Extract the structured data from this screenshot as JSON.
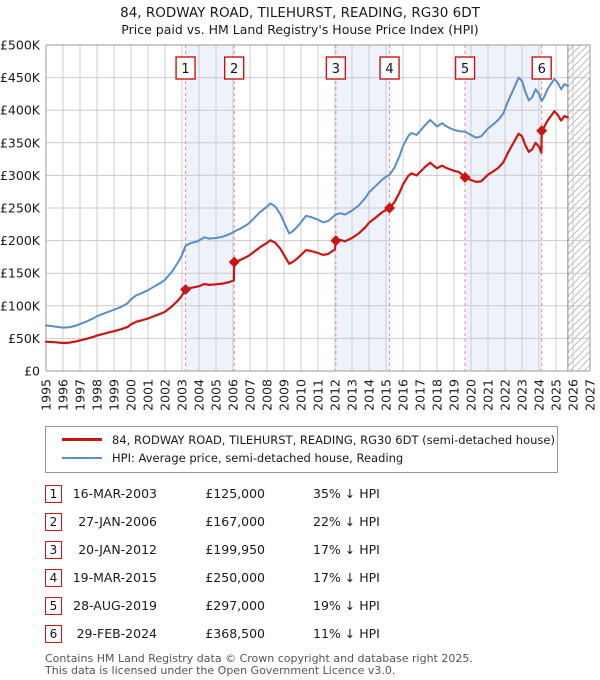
{
  "header": {
    "title": "84, RODWAY ROAD, TILEHURST, READING, RG30 6DT",
    "subtitle": "Price paid vs. HM Land Registry's House Price Index (HPI)"
  },
  "legend": {
    "items": [
      {
        "series": "property",
        "label": "84, RODWAY ROAD, TILEHURST, READING, RG30 6DT (semi-detached house)"
      },
      {
        "series": "hpi",
        "label": "HPI: Average price, semi-detached house, Reading"
      }
    ]
  },
  "table": {
    "rows": [
      {
        "n": "1",
        "date": "16-MAR-2003",
        "price": "£125,000",
        "pct": "35% ↓ HPI"
      },
      {
        "n": "2",
        "date": "27-JAN-2006",
        "price": "£167,000",
        "pct": "22% ↓ HPI"
      },
      {
        "n": "3",
        "date": "20-JAN-2012",
        "price": "£199,950",
        "pct": "17% ↓ HPI"
      },
      {
        "n": "4",
        "date": "19-MAR-2015",
        "price": "£250,000",
        "pct": "17% ↓ HPI"
      },
      {
        "n": "5",
        "date": "28-AUG-2019",
        "price": "£297,000",
        "pct": "19% ↓ HPI"
      },
      {
        "n": "6",
        "date": "29-FEB-2024",
        "price": "£368,500",
        "pct": "11% ↓ HPI"
      }
    ]
  },
  "footer": {
    "line1": "Contains HM Land Registry data © Crown copyright and database right 2025.",
    "line2": "This data is licensed under the Open Government Licence v3.0."
  },
  "chart_data": {
    "type": "line",
    "units": "GBP_thousands",
    "x_range": [
      1995,
      2027
    ],
    "y_range_thousands": [
      0,
      500
    ],
    "y_tick_step_thousands": 50,
    "y_tick_labels": [
      "£0",
      "£50K",
      "£100K",
      "£150K",
      "£200K",
      "£250K",
      "£300K",
      "£350K",
      "£400K",
      "£450K",
      "£500K"
    ],
    "x_tick_labels": [
      "1995",
      "1996",
      "1997",
      "1998",
      "1999",
      "2000",
      "2001",
      "2002",
      "2003",
      "2004",
      "2005",
      "2006",
      "2007",
      "2008",
      "2009",
      "2010",
      "2011",
      "2012",
      "2013",
      "2014",
      "2015",
      "2016",
      "2017",
      "2018",
      "2019",
      "2020",
      "2021",
      "2022",
      "2023",
      "2024",
      "2025",
      "2026",
      "2027"
    ],
    "grid": true,
    "legend_position": "below",
    "future_hatch_from": 2025.7,
    "shaded_bands": [
      [
        2003.21,
        2006.07
      ],
      [
        2012.05,
        2015.21
      ],
      [
        2019.65,
        2024.16
      ]
    ],
    "colors": {
      "property": "#cc1414",
      "hpi": "#5b8cc8",
      "sale_dash": "#ee8888",
      "band": "#eef2fb",
      "grid": "#cccccc",
      "plot_border": "#999999",
      "hatch": "#bbbbbb",
      "axis_text": "#1a1a1a"
    },
    "sales": [
      {
        "n": "1",
        "year": 2003.21,
        "price_k": 125.0,
        "date": "16-MAR-2003",
        "price": "£125,000",
        "pct": "35% ↓ HPI"
      },
      {
        "n": "2",
        "year": 2006.07,
        "price_k": 167.0,
        "date": "27-JAN-2006",
        "price": "£167,000",
        "pct": "22% ↓ HPI"
      },
      {
        "n": "3",
        "year": 2012.05,
        "price_k": 199.95,
        "date": "20-JAN-2012",
        "price": "£199,950",
        "pct": "17% ↓ HPI"
      },
      {
        "n": "4",
        "year": 2015.21,
        "price_k": 250.0,
        "date": "19-MAR-2015",
        "price": "£250,000",
        "pct": "17% ↓ HPI"
      },
      {
        "n": "5",
        "year": 2019.65,
        "price_k": 297.0,
        "date": "28-AUG-2019",
        "price": "£297,000",
        "pct": "19% ↓ HPI"
      },
      {
        "n": "6",
        "year": 2024.16,
        "price_k": 368.5,
        "date": "29-FEB-2024",
        "price": "£368,500",
        "pct": "11% ↓ HPI"
      }
    ],
    "series": [
      {
        "name": "hpi",
        "points": [
          [
            1995.0,
            70
          ],
          [
            1995.3,
            69
          ],
          [
            1995.6,
            68
          ],
          [
            1996.0,
            66.5
          ],
          [
            1996.4,
            67
          ],
          [
            1996.8,
            70
          ],
          [
            1997.0,
            72
          ],
          [
            1997.4,
            76
          ],
          [
            1997.8,
            81
          ],
          [
            1998.0,
            84
          ],
          [
            1998.4,
            88
          ],
          [
            1998.8,
            92
          ],
          [
            1999.0,
            94
          ],
          [
            1999.4,
            98
          ],
          [
            1999.8,
            104
          ],
          [
            2000.0,
            110
          ],
          [
            2000.3,
            116
          ],
          [
            2000.6,
            119
          ],
          [
            2001.0,
            124
          ],
          [
            2001.4,
            130
          ],
          [
            2001.8,
            136
          ],
          [
            2002.0,
            140
          ],
          [
            2002.4,
            152
          ],
          [
            2002.8,
            168
          ],
          [
            2003.0,
            178
          ],
          [
            2003.21,
            192
          ],
          [
            2003.5,
            196
          ],
          [
            2003.8,
            198
          ],
          [
            2004.0,
            200
          ],
          [
            2004.3,
            205
          ],
          [
            2004.6,
            203
          ],
          [
            2005.0,
            204
          ],
          [
            2005.4,
            206
          ],
          [
            2005.8,
            210
          ],
          [
            2006.07,
            214
          ],
          [
            2006.4,
            218
          ],
          [
            2006.8,
            224
          ],
          [
            2007.0,
            228
          ],
          [
            2007.3,
            236
          ],
          [
            2007.6,
            244
          ],
          [
            2008.0,
            252
          ],
          [
            2008.2,
            257
          ],
          [
            2008.5,
            252
          ],
          [
            2008.8,
            240
          ],
          [
            2009.0,
            228
          ],
          [
            2009.3,
            211
          ],
          [
            2009.5,
            214
          ],
          [
            2009.8,
            222
          ],
          [
            2010.0,
            228
          ],
          [
            2010.3,
            238
          ],
          [
            2010.6,
            236
          ],
          [
            2011.0,
            232
          ],
          [
            2011.3,
            228
          ],
          [
            2011.6,
            230
          ],
          [
            2012.05,
            240
          ],
          [
            2012.3,
            242
          ],
          [
            2012.6,
            240
          ],
          [
            2013.0,
            246
          ],
          [
            2013.4,
            254
          ],
          [
            2013.8,
            266
          ],
          [
            2014.0,
            274
          ],
          [
            2014.4,
            284
          ],
          [
            2014.8,
            294
          ],
          [
            2015.0,
            298
          ],
          [
            2015.21,
            301
          ],
          [
            2015.5,
            312
          ],
          [
            2015.8,
            330
          ],
          [
            2016.0,
            345
          ],
          [
            2016.3,
            360
          ],
          [
            2016.5,
            365
          ],
          [
            2016.8,
            362
          ],
          [
            2017.0,
            368
          ],
          [
            2017.3,
            377
          ],
          [
            2017.6,
            385
          ],
          [
            2017.8,
            380
          ],
          [
            2018.0,
            375
          ],
          [
            2018.3,
            380
          ],
          [
            2018.5,
            376
          ],
          [
            2018.8,
            372
          ],
          [
            2019.0,
            370
          ],
          [
            2019.3,
            368
          ],
          [
            2019.65,
            367
          ],
          [
            2020.0,
            362
          ],
          [
            2020.3,
            358
          ],
          [
            2020.6,
            360
          ],
          [
            2021.0,
            372
          ],
          [
            2021.3,
            378
          ],
          [
            2021.6,
            385
          ],
          [
            2021.9,
            395
          ],
          [
            2022.2,
            415
          ],
          [
            2022.5,
            432
          ],
          [
            2022.8,
            450
          ],
          [
            2023.0,
            445
          ],
          [
            2023.2,
            428
          ],
          [
            2023.4,
            415
          ],
          [
            2023.6,
            420
          ],
          [
            2023.8,
            432
          ],
          [
            2024.0,
            425
          ],
          [
            2024.16,
            414
          ],
          [
            2024.3,
            420
          ],
          [
            2024.5,
            432
          ],
          [
            2024.7,
            440
          ],
          [
            2024.9,
            448
          ],
          [
            2025.1,
            442
          ],
          [
            2025.3,
            432
          ],
          [
            2025.5,
            440
          ],
          [
            2025.7,
            437
          ]
        ]
      },
      {
        "name": "property",
        "points": [
          [
            1995.0,
            45
          ],
          [
            1995.3,
            44.5
          ],
          [
            1995.6,
            44
          ],
          [
            1996.0,
            43
          ],
          [
            1996.4,
            43.5
          ],
          [
            1996.8,
            45.5
          ],
          [
            1997.0,
            47
          ],
          [
            1997.4,
            49.5
          ],
          [
            1997.8,
            52.5
          ],
          [
            1998.0,
            54.5
          ],
          [
            1998.4,
            57
          ],
          [
            1998.8,
            60
          ],
          [
            1999.0,
            61
          ],
          [
            1999.4,
            64
          ],
          [
            1999.8,
            67.5
          ],
          [
            2000.0,
            71.5
          ],
          [
            2000.3,
            75.5
          ],
          [
            2000.6,
            77.5
          ],
          [
            2001.0,
            80.5
          ],
          [
            2001.4,
            84.5
          ],
          [
            2001.8,
            88.5
          ],
          [
            2002.0,
            91
          ],
          [
            2002.4,
            99
          ],
          [
            2002.8,
            109
          ],
          [
            2003.0,
            116
          ],
          [
            2003.21,
            125
          ],
          [
            2003.5,
            127.5
          ],
          [
            2003.8,
            129
          ],
          [
            2004.0,
            130
          ],
          [
            2004.3,
            133.5
          ],
          [
            2004.6,
            132
          ],
          [
            2005.0,
            133
          ],
          [
            2005.4,
            134
          ],
          [
            2005.8,
            136.5
          ],
          [
            2006.05,
            139
          ],
          [
            2006.07,
            167
          ],
          [
            2006.4,
            170
          ],
          [
            2006.8,
            175
          ],
          [
            2007.0,
            178
          ],
          [
            2007.3,
            184
          ],
          [
            2007.6,
            190
          ],
          [
            2008.0,
            196.5
          ],
          [
            2008.2,
            200.5
          ],
          [
            2008.5,
            196.5
          ],
          [
            2008.8,
            187
          ],
          [
            2009.0,
            178
          ],
          [
            2009.3,
            164.5
          ],
          [
            2009.5,
            167
          ],
          [
            2009.8,
            173
          ],
          [
            2010.0,
            178
          ],
          [
            2010.3,
            185.5
          ],
          [
            2010.6,
            184
          ],
          [
            2011.0,
            181
          ],
          [
            2011.3,
            178
          ],
          [
            2011.6,
            179.5
          ],
          [
            2012.0,
            187
          ],
          [
            2012.05,
            200
          ],
          [
            2012.3,
            201
          ],
          [
            2012.6,
            199
          ],
          [
            2013.0,
            204
          ],
          [
            2013.4,
            211
          ],
          [
            2013.8,
            221
          ],
          [
            2014.0,
            227.5
          ],
          [
            2014.4,
            235.5
          ],
          [
            2014.8,
            244
          ],
          [
            2015.0,
            247
          ],
          [
            2015.21,
            250
          ],
          [
            2015.5,
            259
          ],
          [
            2015.8,
            274
          ],
          [
            2016.0,
            286
          ],
          [
            2016.3,
            299
          ],
          [
            2016.5,
            303
          ],
          [
            2016.8,
            300
          ],
          [
            2017.0,
            305
          ],
          [
            2017.3,
            313
          ],
          [
            2017.6,
            319.5
          ],
          [
            2017.8,
            315
          ],
          [
            2018.0,
            311
          ],
          [
            2018.3,
            315
          ],
          [
            2018.5,
            312
          ],
          [
            2018.8,
            309
          ],
          [
            2019.0,
            307
          ],
          [
            2019.3,
            305
          ],
          [
            2019.65,
            297
          ],
          [
            2020.0,
            293
          ],
          [
            2020.3,
            290
          ],
          [
            2020.6,
            291
          ],
          [
            2021.0,
            301
          ],
          [
            2021.3,
            306
          ],
          [
            2021.6,
            311.5
          ],
          [
            2021.9,
            320
          ],
          [
            2022.2,
            336
          ],
          [
            2022.5,
            350
          ],
          [
            2022.8,
            364
          ],
          [
            2023.0,
            360
          ],
          [
            2023.2,
            346
          ],
          [
            2023.4,
            336
          ],
          [
            2023.6,
            340
          ],
          [
            2023.8,
            350
          ],
          [
            2024.0,
            344
          ],
          [
            2024.14,
            335
          ],
          [
            2024.16,
            368.5
          ],
          [
            2024.3,
            374
          ],
          [
            2024.5,
            384
          ],
          [
            2024.7,
            391
          ],
          [
            2024.9,
            398.5
          ],
          [
            2025.1,
            393
          ],
          [
            2025.3,
            384
          ],
          [
            2025.5,
            391
          ],
          [
            2025.7,
            389
          ]
        ]
      }
    ]
  }
}
